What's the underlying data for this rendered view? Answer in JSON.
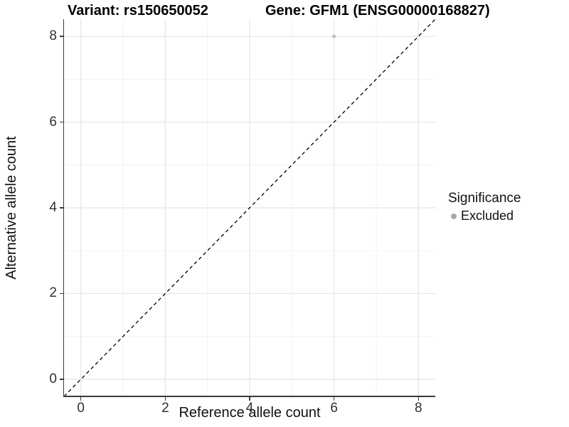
{
  "title": {
    "variant": "Variant: rs150650052",
    "gene": "Gene: GFM1 (ENSG00000168827)"
  },
  "axes": {
    "x_label": "Reference allele count",
    "y_label": "Alternative allele count"
  },
  "legend": {
    "title": "Significance",
    "position": "right",
    "items": [
      {
        "label": "Excluded",
        "marker": "dot",
        "color": "#a9a9a9"
      }
    ]
  },
  "colors": {
    "background": "#ffffff",
    "axis_line": "#3a3a3a",
    "tick_mark": "#3a3a3a",
    "tick_label": "#303030",
    "grid_major": "#e5e5e5",
    "grid_minor": "#f1f1f1",
    "identity_line": "#000000",
    "excluded_point": "#bdbdbd"
  },
  "chart_data": {
    "type": "scatter",
    "title": "Variant: rs150650052 | Gene: GFM1 (ENSG00000168827)",
    "xlabel": "Reference allele count",
    "ylabel": "Alternative allele count",
    "xlim": [
      -0.4,
      8.4
    ],
    "ylim": [
      -0.4,
      8.4
    ],
    "x_ticks": [
      0,
      2,
      4,
      6,
      8
    ],
    "y_ticks": [
      0,
      2,
      4,
      6,
      8
    ],
    "x_minor_ticks": [
      1,
      3,
      5,
      7
    ],
    "y_minor_ticks": [
      1,
      3,
      5,
      7
    ],
    "grid": "major and minor on, light gray",
    "legend_position": "right",
    "series": [
      {
        "name": "Excluded",
        "type": "scatter",
        "color": "#bdbdbd",
        "points": [
          {
            "x": 6,
            "y": 8
          }
        ]
      }
    ],
    "reference_line": {
      "kind": "identity",
      "slope": 1,
      "intercept": 0,
      "style": "dashed",
      "color": "#000000"
    }
  }
}
